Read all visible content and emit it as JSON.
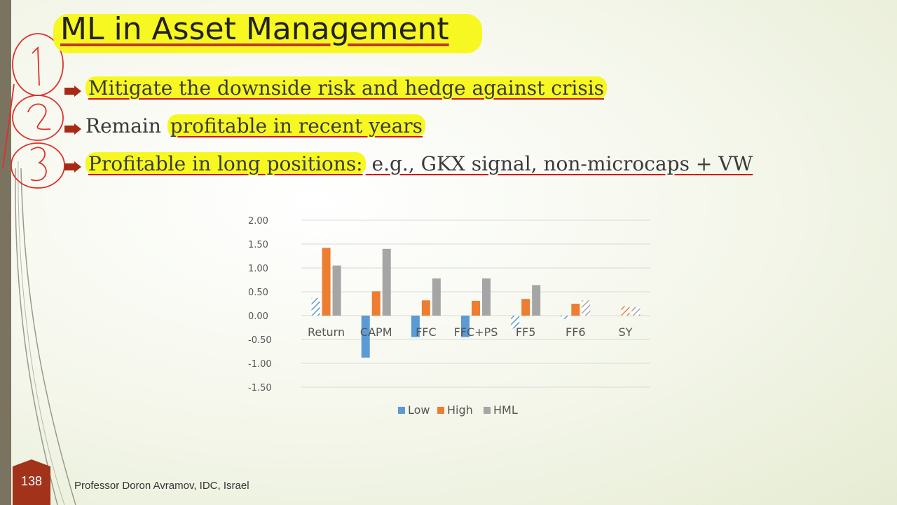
{
  "slide": {
    "title": "ML in Asset Management",
    "number": "138",
    "footer": "Professor Doron Avramov, IDC, Israel"
  },
  "bullets": [
    {
      "highlight": "Mitigate the downside risk and hedge against crisis",
      "rest": ""
    },
    {
      "plain": "Remain ",
      "highlight": "profitable in recent years"
    },
    {
      "highlight": "Profitable in long positions:",
      "rest": " e.g., GKX signal, non-microcaps + VW"
    }
  ],
  "annotations": [
    "1",
    "2",
    "3"
  ],
  "chart_data": {
    "type": "bar",
    "categories": [
      "Return",
      "CAPM",
      "FFC",
      "FFC+PS",
      "FF5",
      "FF6",
      "SY"
    ],
    "series": [
      {
        "name": "Low",
        "color": "#5b9bd5",
        "values": [
          0.37,
          -0.88,
          -0.45,
          -0.45,
          -0.27,
          -0.07,
          0.0
        ],
        "hatched": [
          true,
          false,
          false,
          false,
          true,
          true,
          false
        ]
      },
      {
        "name": "High",
        "color": "#ed7d31",
        "values": [
          1.42,
          0.51,
          0.32,
          0.31,
          0.35,
          0.25,
          0.2
        ],
        "hatched": [
          false,
          false,
          false,
          false,
          false,
          false,
          true
        ]
      },
      {
        "name": "HML",
        "color": "#a5a5a5",
        "values": [
          1.05,
          1.4,
          0.78,
          0.78,
          0.64,
          0.32,
          0.18
        ],
        "hatched": [
          false,
          false,
          false,
          false,
          false,
          true,
          true
        ]
      }
    ],
    "yticks": [
      "2.00",
      "1.50",
      "1.00",
      "0.50",
      "0.00",
      "-0.50",
      "-1.00",
      "-1.50"
    ],
    "ylim": [
      -1.5,
      2.0
    ],
    "grid": true,
    "legend": "bottom"
  }
}
